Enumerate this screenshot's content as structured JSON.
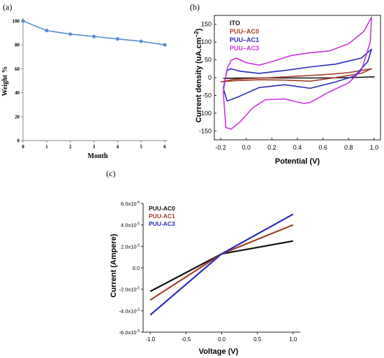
{
  "chart_data": [
    {
      "panel_label": "(a)",
      "type": "line",
      "xlabel": "Month",
      "ylabel": "Weight %",
      "xlim": [
        0,
        6
      ],
      "ylim": [
        0,
        100
      ],
      "xticks": [
        "0",
        "1",
        "2",
        "3",
        "4",
        "5",
        "6"
      ],
      "yticks": [
        "0",
        "20",
        "40",
        "60",
        "80",
        "100"
      ],
      "x": [
        0,
        1,
        2,
        3,
        4,
        5,
        6
      ],
      "series": [
        {
          "values": [
            100,
            92,
            89,
            87,
            85,
            83,
            80
          ],
          "color": "#5b8fcf"
        }
      ],
      "grid": false
    },
    {
      "panel_label": "(b)",
      "type": "line",
      "xlabel": "Potential (V)",
      "ylabel": "Current density (uA.cm",
      "ylabel_sup": "−2",
      "ylabel_close": ")",
      "xlim": [
        -0.25,
        1.05
      ],
      "ylim": [
        -175,
        175
      ],
      "xticks": [
        "-0.2",
        "0.0",
        "0.2",
        "0.4",
        "0.6",
        "0.8",
        "1.0"
      ],
      "yticks": [
        "-150",
        "-100",
        "-50",
        "0",
        "50",
        "100",
        "150"
      ],
      "legend_position": "top-left",
      "series": [
        {
          "name": "ITO",
          "color": "#111111",
          "points": [
            [
              -0.18,
              -2
            ],
            [
              0.0,
              -1
            ],
            [
              0.2,
              -1
            ],
            [
              0.4,
              -1
            ],
            [
              0.6,
              -1
            ],
            [
              0.8,
              0
            ],
            [
              1.0,
              2
            ],
            [
              0.8,
              0
            ],
            [
              0.6,
              -1
            ],
            [
              0.4,
              -1
            ],
            [
              0.2,
              -1
            ],
            [
              0.0,
              -1
            ],
            [
              -0.18,
              -2
            ]
          ]
        },
        {
          "name": "PUU–AC0",
          "color": "#a0402a",
          "points": [
            [
              -0.2,
              -12
            ],
            [
              -0.1,
              -5
            ],
            [
              0.0,
              -3
            ],
            [
              0.2,
              0
            ],
            [
              0.4,
              4
            ],
            [
              0.6,
              8
            ],
            [
              0.8,
              14
            ],
            [
              0.98,
              25
            ],
            [
              0.9,
              12
            ],
            [
              0.7,
              0
            ],
            [
              0.5,
              -10
            ],
            [
              0.3,
              -7
            ],
            [
              0.1,
              -6
            ],
            [
              -0.1,
              -9
            ],
            [
              -0.2,
              -12
            ]
          ]
        },
        {
          "name": "PUU–AC1",
          "color": "#2a2ab8",
          "points": [
            [
              -0.18,
              -30
            ],
            [
              -0.15,
              20
            ],
            [
              -0.12,
              25
            ],
            [
              -0.05,
              18
            ],
            [
              0.1,
              12
            ],
            [
              0.3,
              20
            ],
            [
              0.5,
              30
            ],
            [
              0.7,
              38
            ],
            [
              0.9,
              55
            ],
            [
              0.98,
              80
            ],
            [
              0.95,
              45
            ],
            [
              0.85,
              5
            ],
            [
              0.7,
              -12
            ],
            [
              0.5,
              -30
            ],
            [
              0.3,
              -20
            ],
            [
              0.1,
              -28
            ],
            [
              -0.05,
              -52
            ],
            [
              -0.15,
              -66
            ],
            [
              -0.18,
              -30
            ]
          ]
        },
        {
          "name": "PUU–AC3",
          "color": "#cc33dd",
          "points": [
            [
              -0.18,
              -40
            ],
            [
              -0.15,
              25
            ],
            [
              -0.12,
              48
            ],
            [
              -0.08,
              55
            ],
            [
              0.0,
              42
            ],
            [
              0.1,
              35
            ],
            [
              0.2,
              45
            ],
            [
              0.35,
              62
            ],
            [
              0.5,
              70
            ],
            [
              0.65,
              75
            ],
            [
              0.8,
              95
            ],
            [
              0.92,
              130
            ],
            [
              0.98,
              170
            ],
            [
              0.97,
              100
            ],
            [
              0.9,
              20
            ],
            [
              0.8,
              -15
            ],
            [
              0.65,
              -40
            ],
            [
              0.5,
              -70
            ],
            [
              0.45,
              -73
            ],
            [
              0.3,
              -60
            ],
            [
              0.15,
              -62
            ],
            [
              0.05,
              -85
            ],
            [
              -0.05,
              -125
            ],
            [
              -0.12,
              -145
            ],
            [
              -0.16,
              -140
            ],
            [
              -0.18,
              -40
            ]
          ]
        }
      ],
      "grid": false
    },
    {
      "panel_label": "(c)",
      "type": "line",
      "xlabel": "Voltage (V)",
      "ylabel": "Current (Ampere)",
      "xlim": [
        -1.1,
        1.1
      ],
      "ylim": [
        -6.0,
        6.0
      ],
      "xticks": [
        "-1.0",
        "-0.5",
        "0.0",
        "0.5",
        "1.0"
      ],
      "yticks": [
        "6.0x10",
        "4.0x10",
        "2.0x10",
        "0.0",
        "-2.0x10",
        "-4.0x10",
        "-6.0x10"
      ],
      "ytick_sup": "-5",
      "y_scale": "x10^-5 A",
      "legend_position": "top-left",
      "series": [
        {
          "name": "PUU-AC0",
          "color": "#111111",
          "points": [
            [
              -1.0,
              -2.2
            ],
            [
              0.0,
              1.3
            ],
            [
              1.0,
              2.5
            ]
          ]
        },
        {
          "name": "PUU-AC1",
          "color": "#a0402a",
          "points": [
            [
              -1.0,
              -3.0
            ],
            [
              0.0,
              1.3
            ],
            [
              1.0,
              4.0
            ]
          ]
        },
        {
          "name": "PUU-AC3",
          "color": "#2a2ab8",
          "points": [
            [
              -1.0,
              -4.4
            ],
            [
              0.0,
              1.3
            ],
            [
              1.0,
              5.0
            ]
          ]
        }
      ],
      "grid": false
    }
  ]
}
